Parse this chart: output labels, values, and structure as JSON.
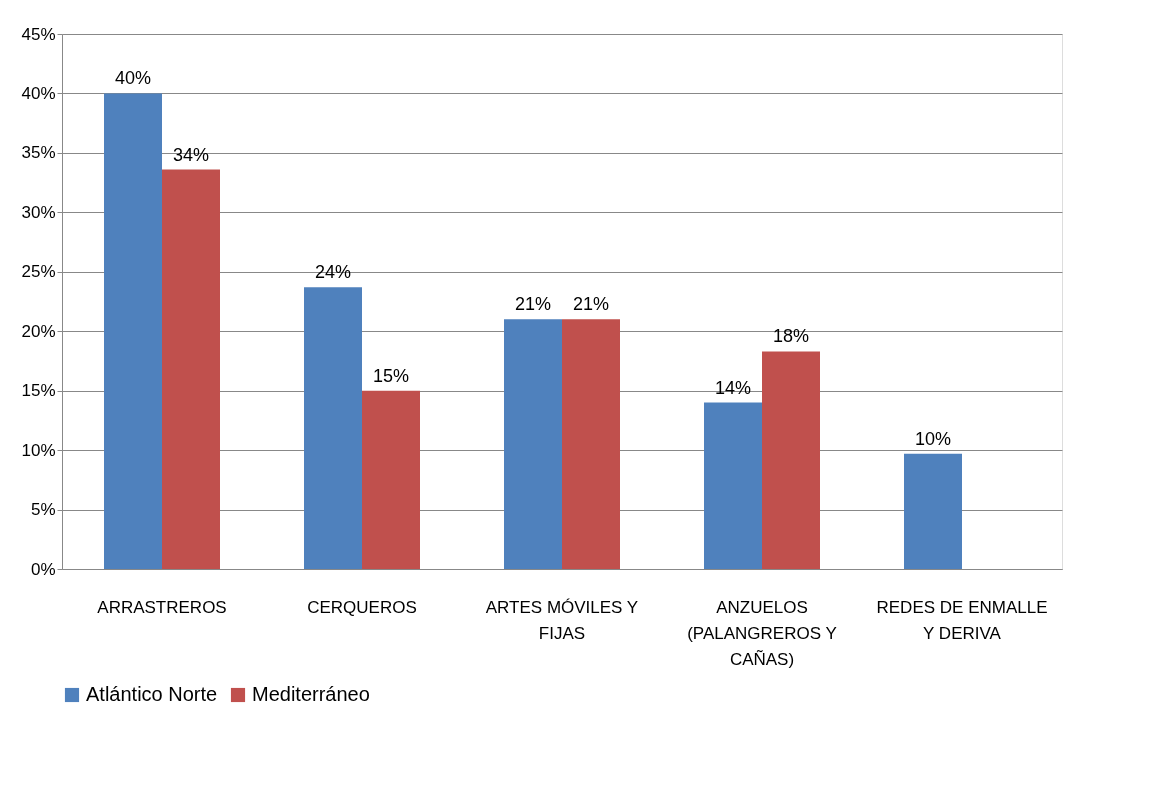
{
  "chart_data": {
    "type": "bar",
    "categories": [
      "ARRASTREROS",
      "CERQUEROS",
      "ARTES MÓVILES Y FIJAS",
      "ANZUELOS (PALANGREROS Y CAÑAS)",
      "REDES DE ENMALLE Y DERIVA"
    ],
    "series": [
      {
        "name": "Atlántico Norte",
        "color": "#4f81bd",
        "values": [
          40.0,
          23.7,
          21.0,
          14.0,
          9.7
        ],
        "value_labels": [
          "40%",
          "24%",
          "21%",
          "14%",
          "10%"
        ]
      },
      {
        "name": "Mediterráneo",
        "color": "#c0504d",
        "values": [
          33.6,
          15.0,
          21.0,
          18.3,
          null
        ],
        "value_labels": [
          "34%",
          "15%",
          "21%",
          "18%",
          null
        ]
      }
    ],
    "ylim": [
      0,
      45
    ],
    "yticks": [
      {
        "value": 0,
        "label": "0%"
      },
      {
        "value": 5,
        "label": "5%"
      },
      {
        "value": 10,
        "label": "10%"
      },
      {
        "value": 15,
        "label": "15%"
      },
      {
        "value": 20,
        "label": "20%"
      },
      {
        "value": 25,
        "label": "25%"
      },
      {
        "value": 30,
        "label": "30%"
      },
      {
        "value": 35,
        "label": "35%"
      },
      {
        "value": 40,
        "label": "40%"
      },
      {
        "value": 45,
        "label": "45%"
      }
    ],
    "grid": "y",
    "legend": "bottom"
  }
}
